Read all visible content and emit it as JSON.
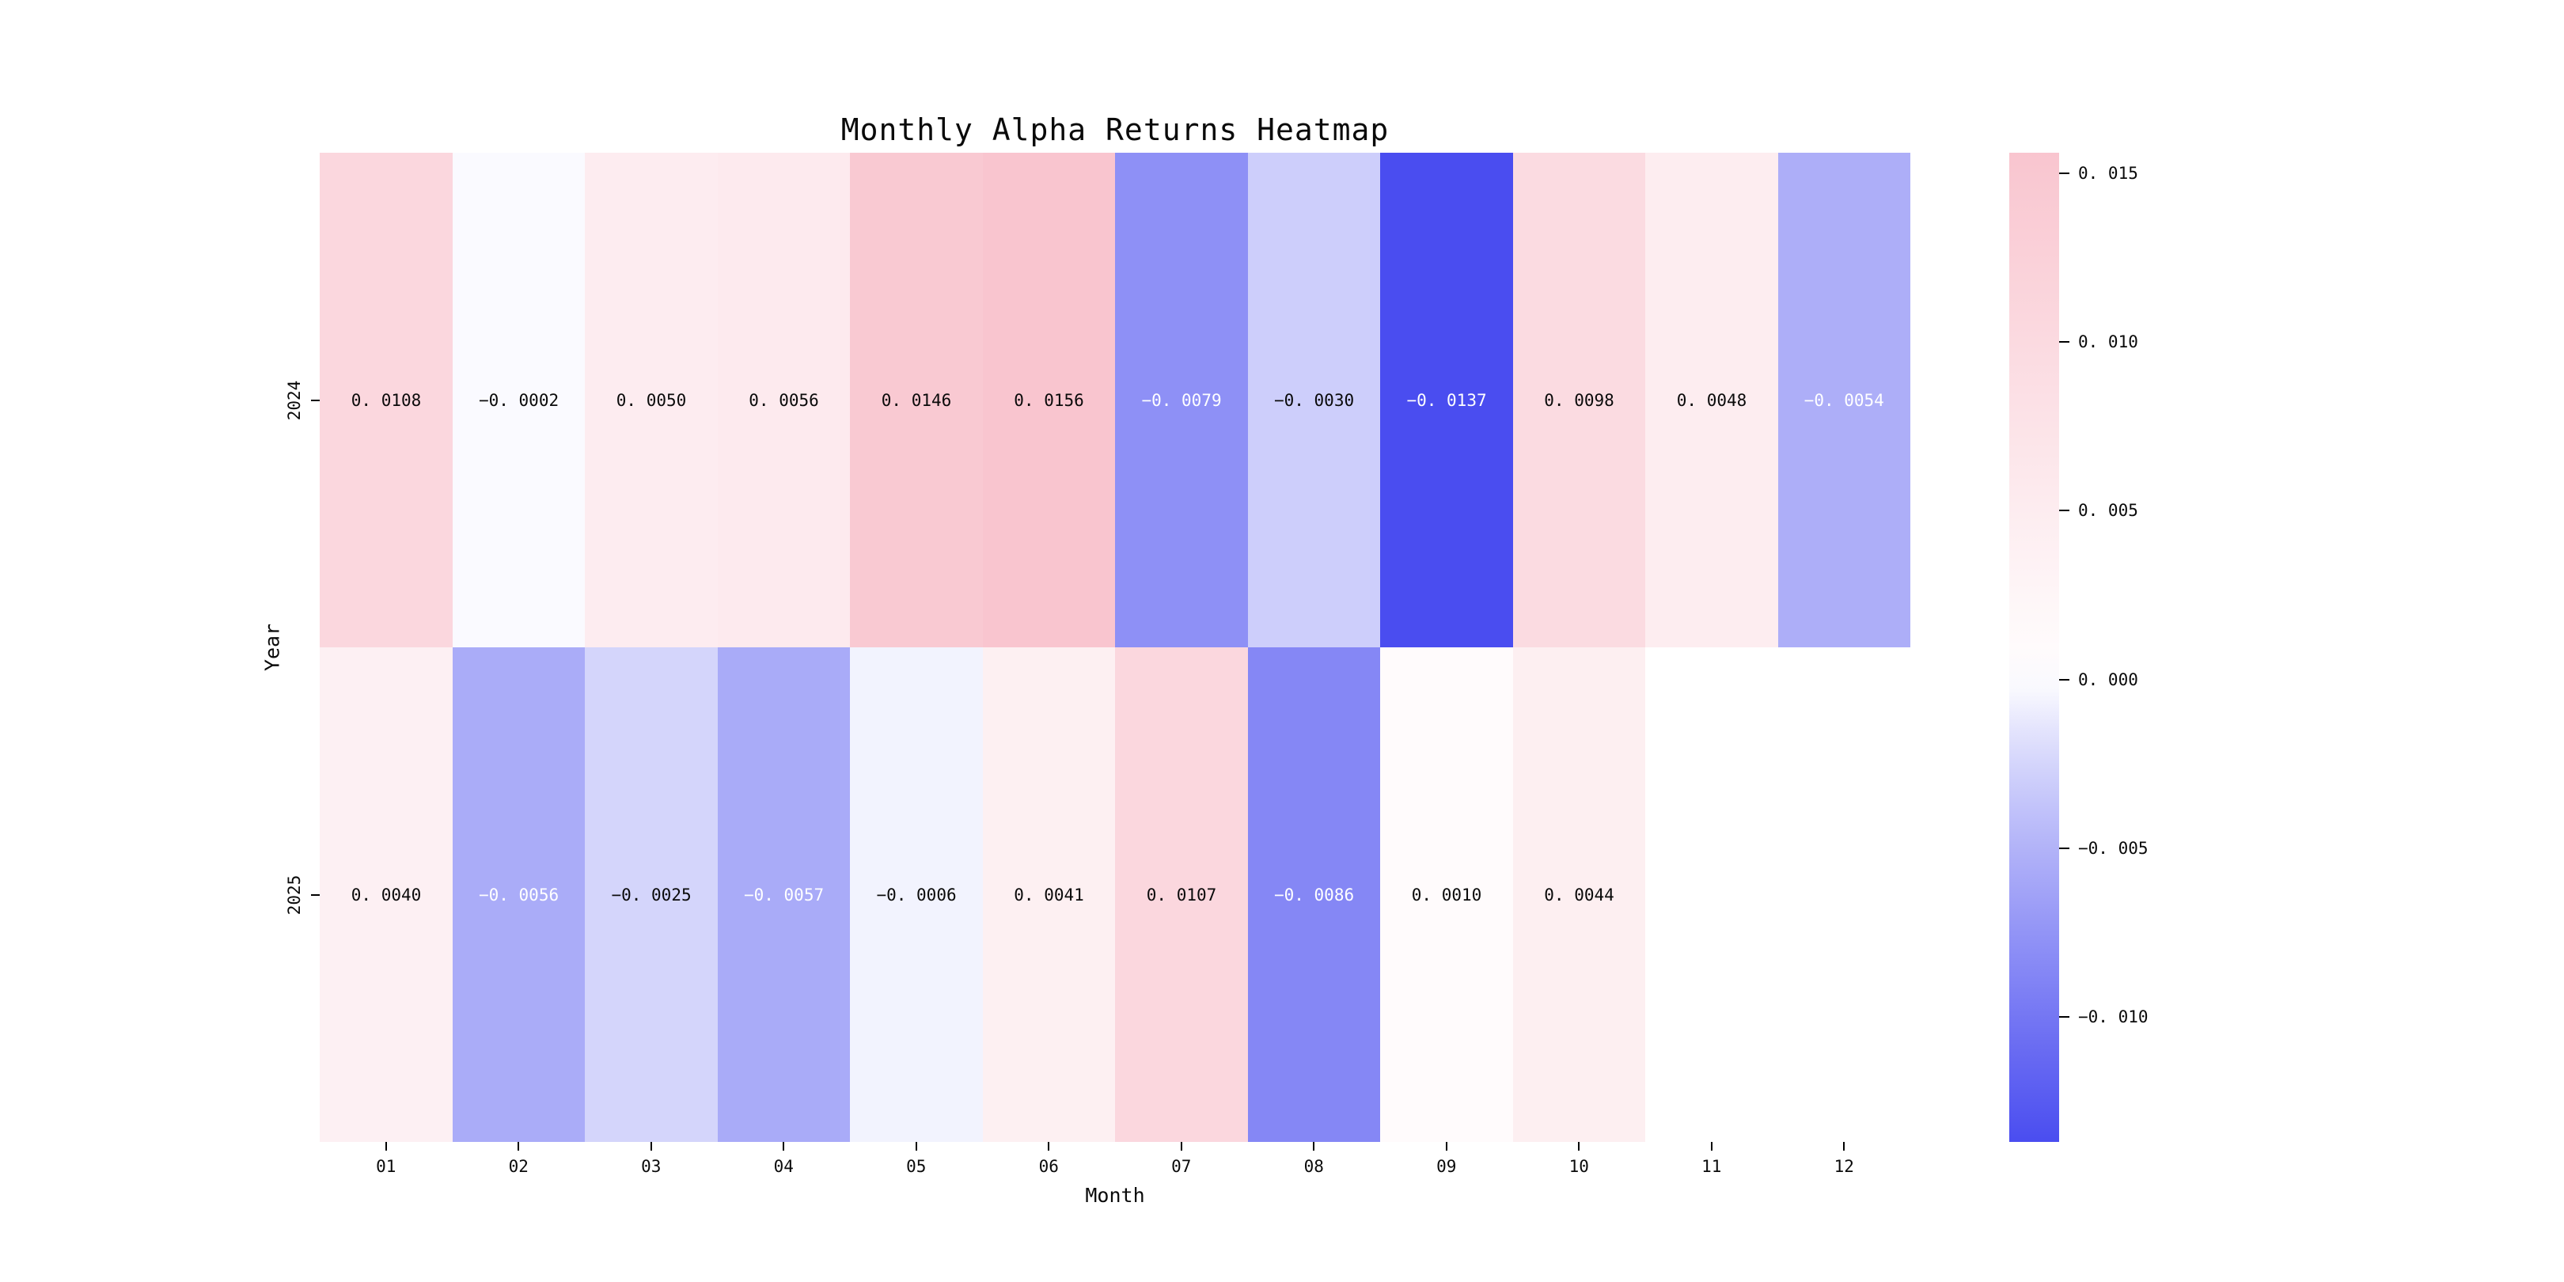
{
  "figure": {
    "background": "#ffffff"
  },
  "chart_data": {
    "type": "heatmap",
    "title": "Monthly Alpha Returns Heatmap",
    "xlabel": "Month",
    "ylabel": "Year",
    "x_categories": [
      "01",
      "02",
      "03",
      "04",
      "05",
      "06",
      "07",
      "08",
      "09",
      "10",
      "11",
      "12"
    ],
    "y_categories": [
      "2024",
      "2025"
    ],
    "series": [
      {
        "name": "2024",
        "values": [
          0.0108,
          -0.0002,
          0.005,
          0.0056,
          0.0146,
          0.0156,
          -0.0079,
          -0.003,
          -0.0137,
          0.0098,
          0.0048,
          -0.0054
        ]
      },
      {
        "name": "2025",
        "values": [
          0.004,
          -0.0056,
          -0.0025,
          -0.0057,
          -0.0006,
          0.0041,
          0.0107,
          -0.0086,
          0.001,
          0.0044,
          null,
          null
        ]
      }
    ],
    "cell_labels": [
      [
        "0.0108",
        "−0.0002",
        "0.0050",
        "0.0056",
        "0.0146",
        "0.0156",
        "−0.0079",
        "−0.0030",
        "−0.0137",
        "0.0098",
        "0.0048",
        "−0.0054"
      ],
      [
        "0.0040",
        "−0.0056",
        "−0.0025",
        "−0.0057",
        "−0.0006",
        "0.0041",
        "0.0107",
        "−0.0086",
        "0.0010",
        "0.0044",
        "",
        ""
      ]
    ],
    "colorbar": {
      "vmax": 0.0156,
      "vmin": -0.0137,
      "ticks": [
        {
          "value": 0.015,
          "label": "0.015"
        },
        {
          "value": 0.01,
          "label": "0.010"
        },
        {
          "value": 0.005,
          "label": "0.005"
        },
        {
          "value": 0.0,
          "label": "0.000"
        },
        {
          "value": -0.005,
          "label": "−0.005"
        },
        {
          "value": -0.01,
          "label": "−0.010"
        }
      ]
    },
    "colors": {
      "positive_max": "#f9c5cf",
      "negative_max": "#4a4df0",
      "zero": "#ffffff",
      "nan": "#ffffff",
      "annotation_dark": "#0a0a0a",
      "annotation_light": "#ffffff"
    },
    "grid": false,
    "legend_position": "right-colorbar"
  }
}
